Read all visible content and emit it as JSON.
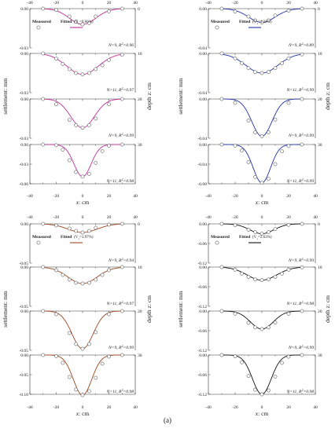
{
  "caption": "(a)",
  "axis_text": {
    "ylabel": "settlement: mm",
    "rlabel": "depth z: cm",
    "xlabel": "x: cm"
  },
  "chart_data": [
    {
      "type": "scatter",
      "id": "top-left",
      "color": "#c0309c",
      "legend": {
        "measured": "Measured",
        "fitted": "Fitted",
        "vl": "1=0.66%"
      },
      "xlim": [
        -40,
        40
      ],
      "xticks": [
        "-40",
        "-20",
        "0",
        "20",
        "40"
      ],
      "depth_ticks": [
        "0",
        "10",
        "20",
        "30"
      ],
      "panels": [
        {
          "depth": 0,
          "ylim": [
            -0.03,
            0
          ],
          "yticks": [
            "0.00",
            "-0.03"
          ],
          "label_prefix": "N=9, R",
          "label_suffix": "=0.96",
          "x": [
            -30,
            -20,
            -10,
            -5,
            0,
            5,
            10,
            20,
            30
          ],
          "measured": [
            0.0,
            -0.001,
            -0.006,
            -0.01,
            -0.012,
            -0.011,
            -0.006,
            -0.002,
            0.0
          ],
          "fit_peak": -0.012,
          "fit_width": 10
        },
        {
          "depth": 10,
          "ylim": [
            -0.03,
            0
          ],
          "yticks": [
            "0.00",
            "-0.03"
          ],
          "label_prefix": "N=11, R",
          "label_suffix": "=0.97",
          "x": [
            -30,
            -20,
            -15,
            -10,
            -5,
            0,
            5,
            10,
            15,
            20,
            30
          ],
          "measured": [
            0.0,
            -0.004,
            -0.008,
            -0.012,
            -0.015,
            -0.016,
            -0.015,
            -0.012,
            -0.009,
            -0.005,
            -0.001
          ],
          "fit_peak": -0.016,
          "fit_width": 12
        },
        {
          "depth": 20,
          "ylim": [
            -0.03,
            0
          ],
          "yticks": [
            "0.00",
            "-0.03"
          ],
          "label_prefix": "N=9, R",
          "label_suffix": "=0.99",
          "x": [
            -30,
            -20,
            -10,
            -5,
            0,
            5,
            10,
            20,
            30
          ],
          "measured": [
            0.0,
            -0.004,
            -0.016,
            -0.02,
            -0.022,
            -0.02,
            -0.015,
            -0.004,
            0.0
          ],
          "fit_peak": -0.022,
          "fit_width": 9
        },
        {
          "depth": 30,
          "ylim": [
            -0.06,
            0
          ],
          "yticks": [
            "0.00",
            "-0.03",
            "-0.06"
          ],
          "label_prefix": "N=11, R",
          "label_suffix": "=0.98",
          "x": [
            -30,
            -20,
            -15,
            -10,
            -5,
            0,
            5,
            10,
            15,
            20,
            30
          ],
          "measured": [
            0.0,
            -0.001,
            -0.008,
            -0.024,
            -0.042,
            -0.049,
            -0.045,
            -0.028,
            -0.01,
            -0.002,
            0.0
          ],
          "fit_peak": -0.049,
          "fit_width": 6.5
        }
      ]
    },
    {
      "type": "scatter",
      "id": "top-right",
      "color": "#2233aa",
      "legend": {
        "measured": "Measured",
        "fitted": "Fitted",
        "vl": "1=1.32%"
      },
      "xlim": [
        -40,
        40
      ],
      "xticks": [
        "-40",
        "-20",
        "0",
        "20",
        "40"
      ],
      "depth_ticks": [
        "0",
        "10",
        "20",
        "30"
      ],
      "panels": [
        {
          "depth": 0,
          "ylim": [
            -0.04,
            0
          ],
          "yticks": [
            "0.00",
            "-0.04"
          ],
          "label_prefix": "N=9, R",
          "label_suffix": "=0.89",
          "x": [
            -30,
            -20,
            -10,
            -5,
            0,
            5,
            10,
            20,
            30
          ],
          "measured": [
            0.0,
            -0.003,
            -0.008,
            -0.012,
            -0.014,
            -0.012,
            -0.007,
            -0.002,
            0.0
          ],
          "fit_peak": -0.014,
          "fit_width": 10
        },
        {
          "depth": 10,
          "ylim": [
            -0.04,
            0
          ],
          "yticks": [
            "0.00",
            "-0.04"
          ],
          "label_prefix": "N=11, R",
          "label_suffix": "=0.99",
          "x": [
            -30,
            -20,
            -15,
            -10,
            -5,
            0,
            5,
            10,
            15,
            20,
            30
          ],
          "measured": [
            0.0,
            -0.005,
            -0.01,
            -0.015,
            -0.019,
            -0.02,
            -0.019,
            -0.015,
            -0.01,
            -0.005,
            -0.001
          ],
          "fit_peak": -0.02,
          "fit_width": 12
        },
        {
          "depth": 20,
          "ylim": [
            -0.04,
            0
          ],
          "yticks": [
            "0.00",
            "-0.04"
          ],
          "label_prefix": "N=9, R",
          "label_suffix": "=0.99",
          "x": [
            -30,
            -20,
            -10,
            -5,
            0,
            5,
            10,
            20,
            30
          ],
          "measured": [
            0.0,
            -0.004,
            -0.022,
            -0.034,
            -0.038,
            -0.034,
            -0.021,
            -0.004,
            0.0
          ],
          "fit_peak": -0.038,
          "fit_width": 7.5
        },
        {
          "depth": 30,
          "ylim": [
            -0.08,
            0
          ],
          "yticks": [
            "0.00",
            "-0.04",
            "-0.08"
          ],
          "label_prefix": "N=11, R",
          "label_suffix": "=0.99",
          "x": [
            -30,
            -20,
            -15,
            -10,
            -5,
            0,
            5,
            10,
            15,
            20,
            30
          ],
          "measured": [
            0.0,
            -0.002,
            -0.012,
            -0.036,
            -0.066,
            -0.078,
            -0.07,
            -0.04,
            -0.014,
            -0.003,
            0.0
          ],
          "fit_peak": -0.078,
          "fit_width": 6.5
        }
      ]
    },
    {
      "type": "scatter",
      "id": "bottom-left",
      "color": "#a0461e",
      "legend": {
        "measured": "Measured",
        "fitted": "Fitted",
        "vl": "1=1.97%"
      },
      "xlim": [
        -40,
        40
      ],
      "xticks": [
        "-40",
        "-20",
        "0",
        "20",
        "40"
      ],
      "depth_ticks": [
        "0",
        "10",
        "20",
        "30"
      ],
      "panels": [
        {
          "depth": 0,
          "ylim": [
            -0.05,
            0
          ],
          "yticks": [
            "0.00",
            "-0.05"
          ],
          "label_prefix": "N=9, R",
          "label_suffix": "=0.94",
          "x": [
            -30,
            -20,
            -10,
            -5,
            0,
            5,
            10,
            20,
            30
          ],
          "measured": [
            0.0,
            -0.002,
            -0.006,
            -0.009,
            -0.011,
            -0.009,
            -0.005,
            -0.001,
            0.0
          ],
          "fit_peak": -0.011,
          "fit_width": 11
        },
        {
          "depth": 10,
          "ylim": [
            -0.05,
            0
          ],
          "yticks": [
            "0.00",
            "-0.05"
          ],
          "label_prefix": "N=11, R",
          "label_suffix": "=0.97",
          "x": [
            -30,
            -20,
            -15,
            -10,
            -5,
            0,
            5,
            10,
            15,
            20,
            30
          ],
          "measured": [
            0.0,
            -0.004,
            -0.01,
            -0.016,
            -0.02,
            -0.021,
            -0.02,
            -0.016,
            -0.01,
            -0.004,
            0.0
          ],
          "fit_peak": -0.021,
          "fit_width": 11
        },
        {
          "depth": 20,
          "ylim": [
            -0.05,
            0
          ],
          "yticks": [
            "0.00",
            "-0.05"
          ],
          "label_prefix": "N=9, R",
          "label_suffix": "=0.99",
          "x": [
            -30,
            -20,
            -10,
            -5,
            0,
            5,
            10,
            20,
            30
          ],
          "measured": [
            0.0,
            -0.004,
            -0.028,
            -0.042,
            -0.048,
            -0.042,
            -0.027,
            -0.004,
            0.0
          ],
          "fit_peak": -0.048,
          "fit_width": 8
        },
        {
          "depth": 30,
          "ylim": [
            -0.1,
            0
          ],
          "yticks": [
            "0.00",
            "-0.05",
            "-0.10"
          ],
          "label_prefix": "N=11, R",
          "label_suffix": "=0.98",
          "x": [
            -30,
            -20,
            -15,
            -10,
            -5,
            0,
            5,
            10,
            15,
            20,
            30
          ],
          "measured": [
            0.0,
            -0.003,
            -0.02,
            -0.056,
            -0.088,
            -0.102,
            -0.092,
            -0.058,
            -0.022,
            -0.004,
            0.0
          ],
          "fit_peak": -0.102,
          "fit_width": 7
        }
      ]
    },
    {
      "type": "scatter",
      "id": "bottom-right",
      "color": "#111111",
      "legend": {
        "measured": "Measured",
        "fitted": "Fitted",
        "vl": "1=2.63%"
      },
      "xlim": [
        -40,
        40
      ],
      "xticks": [
        "-40",
        "-20",
        "0",
        "20",
        "40"
      ],
      "depth_ticks": [
        "0",
        "10",
        "20",
        "30"
      ],
      "panels": [
        {
          "depth": 0,
          "ylim": [
            -0.12,
            0
          ],
          "yticks": [
            "0.00",
            "-0.06",
            "-0.12"
          ],
          "label_prefix": "N=9, R",
          "label_suffix": "=0.99",
          "x": [
            -30,
            -20,
            -10,
            -5,
            0,
            5,
            10,
            20,
            30
          ],
          "measured": [
            0.0,
            -0.004,
            -0.018,
            -0.025,
            -0.03,
            -0.025,
            -0.016,
            -0.003,
            0.0
          ],
          "fit_peak": -0.03,
          "fit_width": 9
        },
        {
          "depth": 10,
          "ylim": [
            -0.12,
            0
          ],
          "yticks": [
            "0.00",
            "-0.06",
            "-0.12"
          ],
          "label_prefix": "N=11, R",
          "label_suffix": "=0.98",
          "x": [
            -30,
            -20,
            -15,
            -10,
            -5,
            0,
            5,
            10,
            15,
            20,
            30
          ],
          "measured": [
            0.0,
            -0.008,
            -0.02,
            -0.03,
            -0.038,
            -0.04,
            -0.038,
            -0.03,
            -0.02,
            -0.008,
            -0.001
          ],
          "fit_peak": -0.04,
          "fit_width": 11
        },
        {
          "depth": 20,
          "ylim": [
            -0.12,
            0
          ],
          "yticks": [
            "0.00",
            "-0.06",
            "-0.12"
          ],
          "label_prefix": "N=9, R",
          "label_suffix": "=0.99",
          "x": [
            -30,
            -20,
            -10,
            -5,
            0,
            5,
            10,
            20,
            30
          ],
          "measured": [
            0.0,
            -0.008,
            -0.036,
            -0.05,
            -0.055,
            -0.05,
            -0.035,
            -0.008,
            0.0
          ],
          "fit_peak": -0.055,
          "fit_width": 8.5
        },
        {
          "depth": 30,
          "ylim": [
            -0.12,
            0
          ],
          "yticks": [
            "0.00",
            "-0.06",
            "-0.12"
          ],
          "label_prefix": "N=11, R",
          "label_suffix": "=0.98",
          "x": [
            -30,
            -20,
            -15,
            -10,
            -5,
            0,
            5,
            10,
            15,
            20,
            30
          ],
          "measured": [
            0.0,
            -0.004,
            -0.022,
            -0.064,
            -0.106,
            -0.12,
            -0.108,
            -0.066,
            -0.024,
            -0.005,
            0.0
          ],
          "fit_peak": -0.12,
          "fit_width": 7
        }
      ]
    }
  ]
}
